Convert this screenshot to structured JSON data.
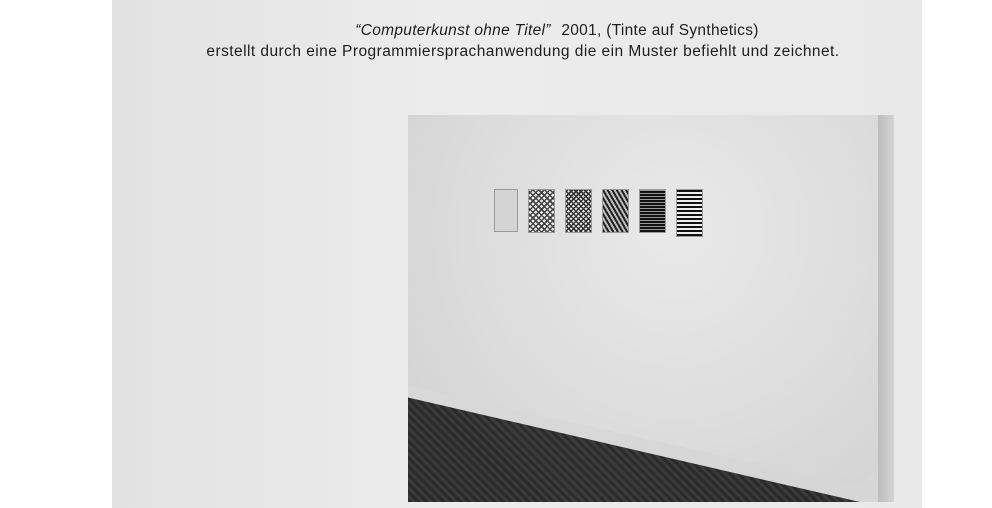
{
  "caption": {
    "title": "“Computerkunst ohne Titel”",
    "details": "2001, (Tinte auf Synthetics)",
    "description": "erstellt durch eine Programmiersprachanwendung die ein Muster befiehlt und zeichnet."
  },
  "photo": {
    "subject": "gallery-wall-with-six-framed-pattern-drawings",
    "piece_count": 6
  }
}
